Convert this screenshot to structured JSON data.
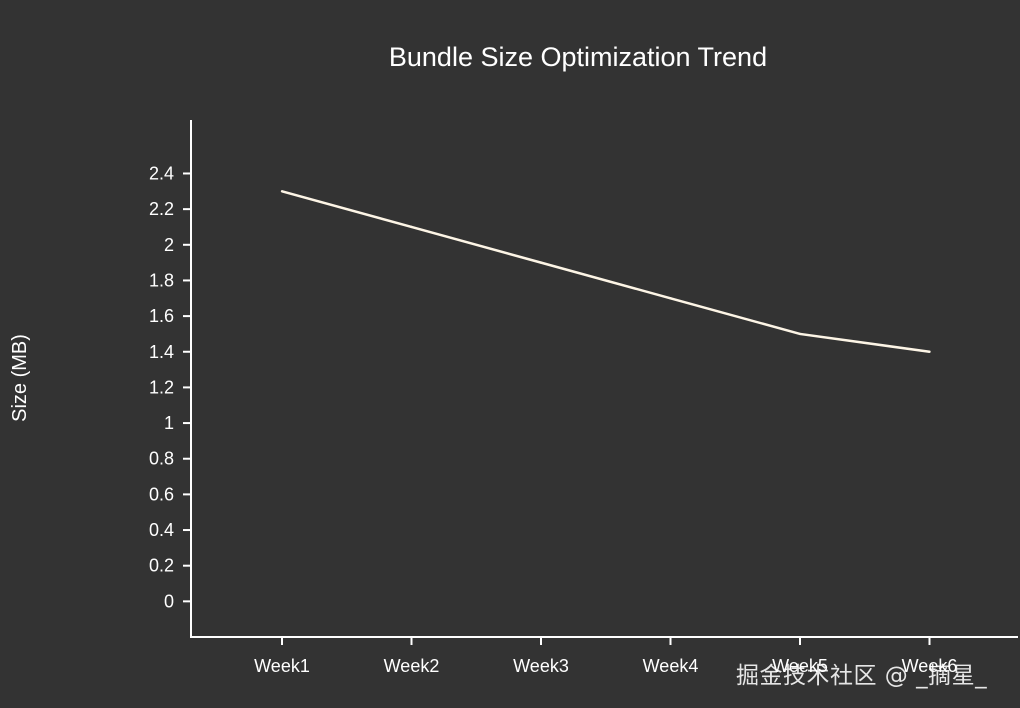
{
  "chart_data": {
    "type": "line",
    "title": "Bundle Size Optimization Trend",
    "xlabel": "",
    "ylabel": "Size (MB)",
    "categories": [
      "Week1",
      "Week2",
      "Week3",
      "Week4",
      "Week5",
      "Week6"
    ],
    "series": [
      {
        "values": [
          2.3,
          2.1,
          1.9,
          1.7,
          1.5,
          1.4
        ],
        "color": "#fdf5e6"
      }
    ],
    "y_ticks": [
      "0",
      "0.2",
      "0.4",
      "0.6",
      "0.8",
      "1",
      "1.2",
      "1.4",
      "1.6",
      "1.8",
      "2",
      "2.2",
      "2.4"
    ],
    "ylim": [
      -0.2,
      2.7
    ],
    "grid": false,
    "legend": "none"
  },
  "watermark": "掘金技术社区 @ _摘星_"
}
